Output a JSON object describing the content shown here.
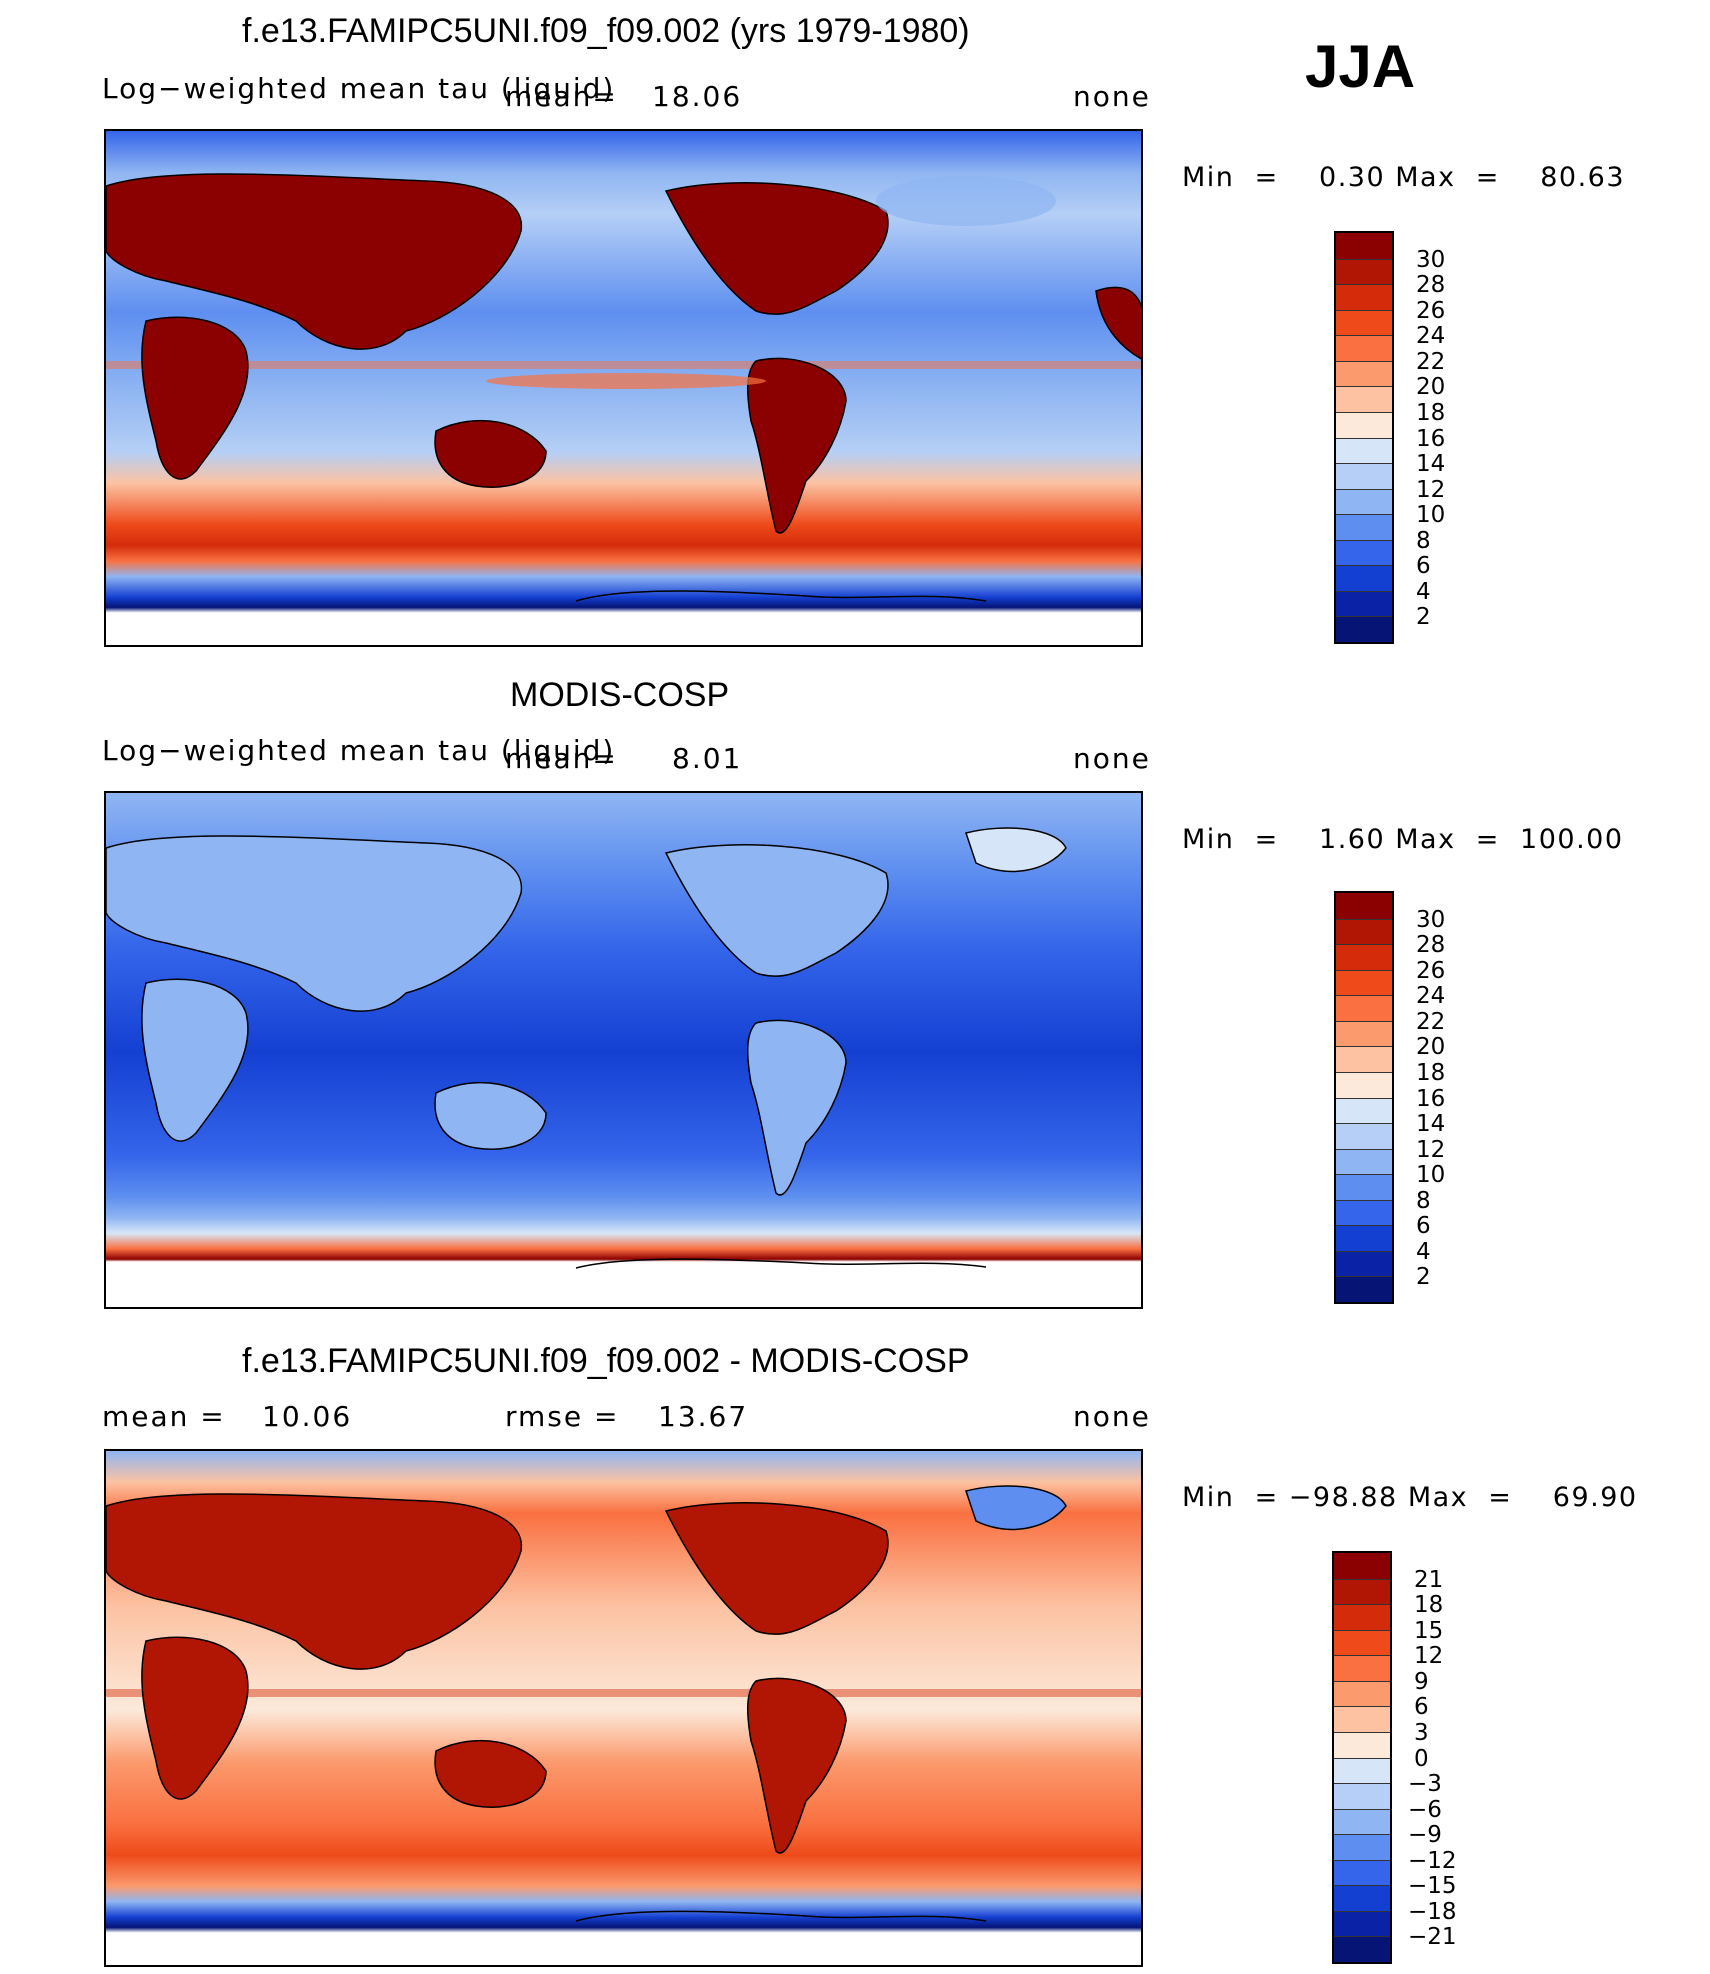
{
  "season": "JJA",
  "chart_data": [
    {
      "type": "heatmap",
      "title": "f.e13.FAMIPC5UNI.f09_f09.002 (yrs 1979-1980)",
      "variable_label": "Log−weighted mean tau (liquid)",
      "mean_label": "mean=",
      "mean_value": "18.06",
      "units": "none",
      "min_label": "Min  =",
      "min_value": "0.30",
      "max_label": "Max  =",
      "max_value": "80.63",
      "colorbar": {
        "levels": [
          "30",
          "28",
          "26",
          "24",
          "22",
          "20",
          "18",
          "16",
          "14",
          "12",
          "10",
          "8",
          "6",
          "4",
          "2"
        ],
        "colors": [
          "#8b0000",
          "#b11503",
          "#d42c0b",
          "#ee4a1a",
          "#fa7040",
          "#fb9a6d",
          "#fcc2a2",
          "#fce9da",
          "#d6e6f8",
          "#b5cff6",
          "#8fb5f2",
          "#5e8ff0",
          "#3465ea",
          "#1440d2",
          "#0a22a6",
          "#061476"
        ]
      }
    },
    {
      "type": "heatmap",
      "title": "MODIS-COSP",
      "variable_label": "Log−weighted mean tau (liquid)",
      "mean_label": "mean=",
      "mean_value": "8.01",
      "units": "none",
      "min_label": "Min  =",
      "min_value": "1.60",
      "max_label": "Max  =",
      "max_value": "100.00",
      "colorbar": {
        "levels": [
          "30",
          "28",
          "26",
          "24",
          "22",
          "20",
          "18",
          "16",
          "14",
          "12",
          "10",
          "8",
          "6",
          "4",
          "2"
        ],
        "colors": [
          "#8b0000",
          "#b11503",
          "#d42c0b",
          "#ee4a1a",
          "#fa7040",
          "#fb9a6d",
          "#fcc2a2",
          "#fce9da",
          "#d6e6f8",
          "#b5cff6",
          "#8fb5f2",
          "#5e8ff0",
          "#3465ea",
          "#1440d2",
          "#0a22a6",
          "#061476"
        ]
      }
    },
    {
      "type": "heatmap",
      "title": "f.e13.FAMIPC5UNI.f09_f09.002 - MODIS-COSP",
      "mean_label": "mean  =",
      "mean_value": "10.06",
      "rmse_label": "rmse  =",
      "rmse_value": "13.67",
      "units": "none",
      "min_label": "Min  =",
      "min_value": "−98.88",
      "max_label": "Max  =",
      "max_value": "69.90",
      "colorbar": {
        "levels": [
          "21",
          "18",
          "15",
          "12",
          "9",
          "6",
          "3",
          "0",
          "−3",
          "−6",
          "−9",
          "−12",
          "−15",
          "−18",
          "−21"
        ],
        "colors": [
          "#8b0000",
          "#b11503",
          "#d42c0b",
          "#ee4a1a",
          "#fa7040",
          "#fb9a6d",
          "#fcc2a2",
          "#fce9da",
          "#d6e6f8",
          "#b5cff6",
          "#8fb5f2",
          "#5e8ff0",
          "#3465ea",
          "#1440d2",
          "#0a22a6",
          "#061476"
        ]
      }
    }
  ]
}
